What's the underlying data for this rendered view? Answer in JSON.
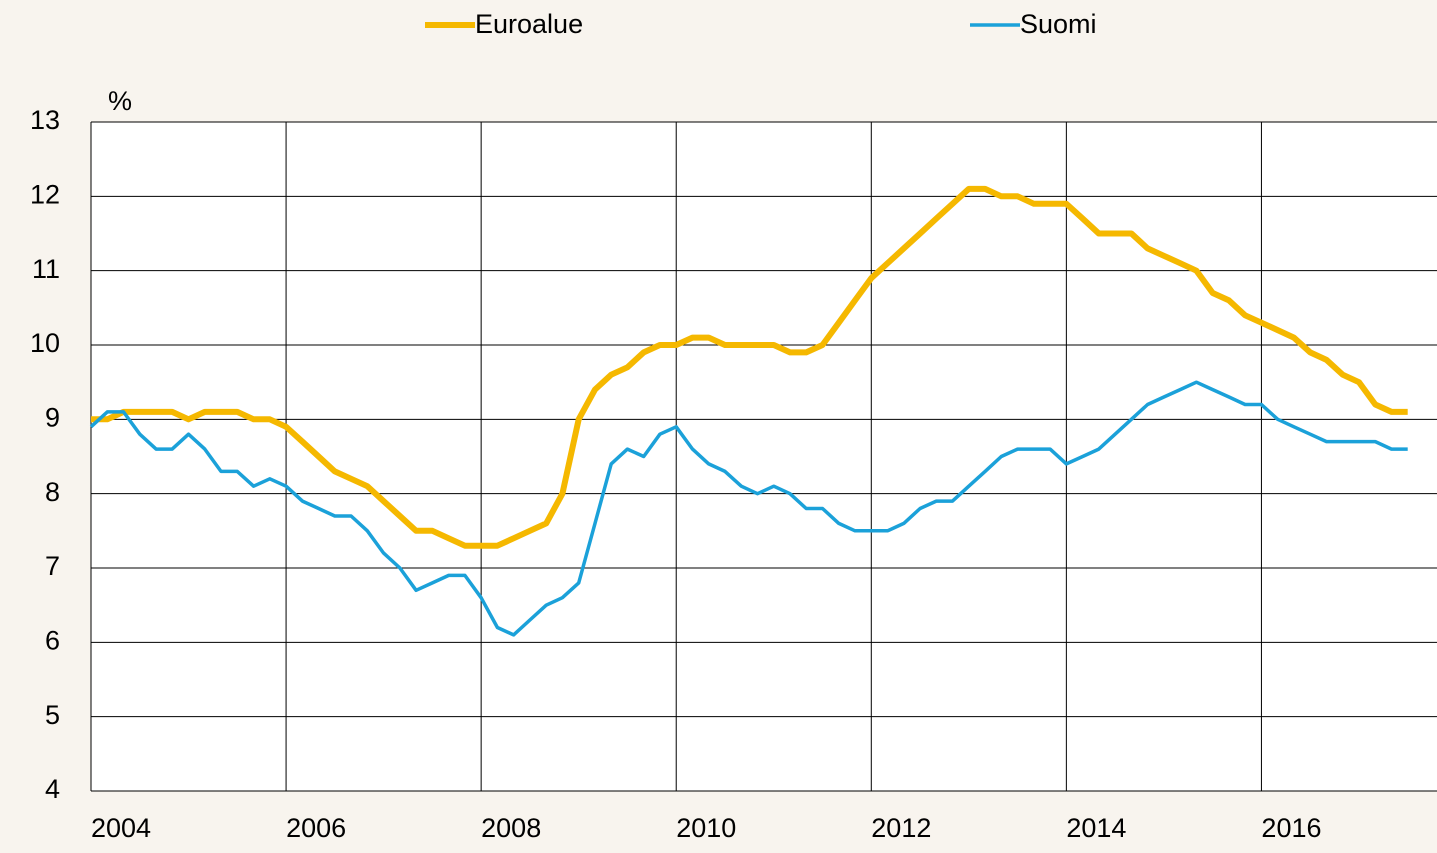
{
  "chart_data": {
    "type": "line",
    "y_label": "%",
    "x": [
      2004,
      2004.167,
      2004.333,
      2004.5,
      2004.667,
      2004.833,
      2005,
      2005.167,
      2005.333,
      2005.5,
      2005.667,
      2005.833,
      2006,
      2006.167,
      2006.333,
      2006.5,
      2006.667,
      2006.833,
      2007,
      2007.167,
      2007.333,
      2007.5,
      2007.667,
      2007.833,
      2008,
      2008.167,
      2008.333,
      2008.5,
      2008.667,
      2008.833,
      2009,
      2009.167,
      2009.333,
      2009.5,
      2009.667,
      2009.833,
      2010,
      2010.167,
      2010.333,
      2010.5,
      2010.667,
      2010.833,
      2011,
      2011.167,
      2011.333,
      2011.5,
      2011.667,
      2011.833,
      2012,
      2012.167,
      2012.333,
      2012.5,
      2012.667,
      2012.833,
      2013,
      2013.167,
      2013.333,
      2013.5,
      2013.667,
      2013.833,
      2014,
      2014.167,
      2014.333,
      2014.5,
      2014.667,
      2014.833,
      2015,
      2015.167,
      2015.333,
      2015.5,
      2015.667,
      2015.833,
      2016,
      2016.167,
      2016.333,
      2016.5,
      2016.667,
      2016.833,
      2017,
      2017.167,
      2017.333,
      2017.5
    ],
    "series": [
      {
        "name": "Euroalue",
        "color": "#f5b800",
        "values": [
          9.0,
          9.0,
          9.1,
          9.1,
          9.1,
          9.1,
          9.0,
          9.1,
          9.1,
          9.1,
          9.0,
          9.0,
          8.9,
          8.7,
          8.5,
          8.3,
          8.2,
          8.1,
          7.9,
          7.7,
          7.5,
          7.5,
          7.4,
          7.3,
          7.3,
          7.3,
          7.4,
          7.5,
          7.6,
          8.0,
          9.0,
          9.4,
          9.6,
          9.7,
          9.9,
          10.0,
          10.0,
          10.1,
          10.1,
          10.0,
          10.0,
          10.0,
          10.0,
          9.9,
          9.9,
          10.0,
          10.3,
          10.6,
          10.9,
          11.1,
          11.3,
          11.5,
          11.7,
          11.9,
          12.1,
          12.1,
          12.0,
          12.0,
          11.9,
          11.9,
          11.9,
          11.7,
          11.5,
          11.5,
          11.5,
          11.3,
          11.2,
          11.1,
          11.0,
          10.7,
          10.6,
          10.4,
          10.3,
          10.2,
          10.1,
          9.9,
          9.8,
          9.6,
          9.5,
          9.2,
          9.1,
          9.1
        ]
      },
      {
        "name": "Suomi",
        "color": "#1ba1d9",
        "values": [
          8.9,
          9.1,
          9.1,
          8.8,
          8.6,
          8.6,
          8.8,
          8.6,
          8.3,
          8.3,
          8.1,
          8.2,
          8.1,
          7.9,
          7.8,
          7.7,
          7.7,
          7.5,
          7.2,
          7.0,
          6.7,
          6.8,
          6.9,
          6.9,
          6.6,
          6.2,
          6.1,
          6.3,
          6.5,
          6.6,
          6.8,
          7.6,
          8.4,
          8.6,
          8.5,
          8.8,
          8.9,
          8.6,
          8.4,
          8.3,
          8.1,
          8.0,
          8.1,
          8.0,
          7.8,
          7.8,
          7.6,
          7.5,
          7.5,
          7.5,
          7.6,
          7.8,
          7.9,
          7.9,
          8.1,
          8.3,
          8.5,
          8.6,
          8.6,
          8.6,
          8.4,
          8.5,
          8.6,
          8.8,
          9.0,
          9.2,
          9.3,
          9.4,
          9.5,
          9.4,
          9.3,
          9.2,
          9.2,
          9.0,
          8.9,
          8.8,
          8.7,
          8.7,
          8.7,
          8.7,
          8.6,
          8.6
        ]
      }
    ],
    "xlim": [
      2004,
      2017.8
    ],
    "xticks": [
      2004,
      2006,
      2008,
      2010,
      2012,
      2014,
      2016
    ],
    "ylim": [
      4,
      13
    ],
    "yticks": [
      4,
      5,
      6,
      7,
      8,
      9,
      10,
      11,
      12,
      13
    ],
    "grid": true,
    "legend": "top"
  }
}
